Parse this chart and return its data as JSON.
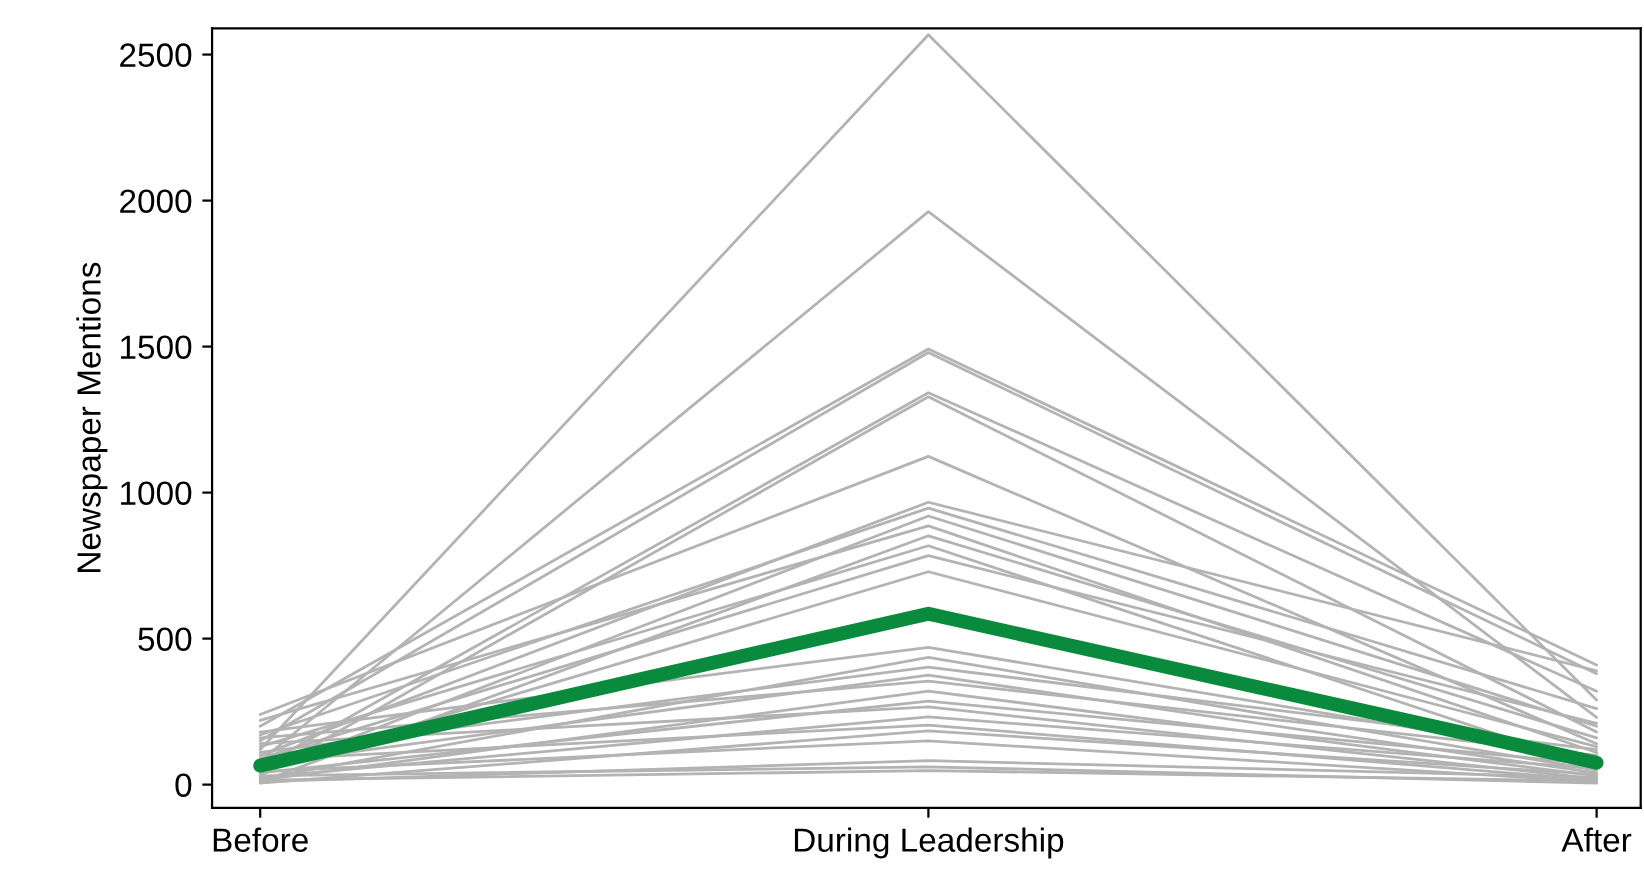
{
  "chart_data": {
    "type": "line",
    "ylabel": "Newspaper Mentions",
    "categories": [
      "Before",
      "During Leadership",
      "After"
    ],
    "ylim": [
      -80,
      2590
    ],
    "yticks": [
      0,
      500,
      1000,
      1500,
      2000,
      2500
    ],
    "grid": false,
    "legend": false,
    "marker": "none",
    "line_style": "solid",
    "series": [
      {
        "color": "#b3b3b3",
        "values": [
          120,
          2568,
          290
        ]
      },
      {
        "color": "#b3b3b3",
        "values": [
          80,
          1962,
          230
        ]
      },
      {
        "color": "#b3b3b3",
        "values": [
          200,
          1492,
          410
        ]
      },
      {
        "color": "#b3b3b3",
        "values": [
          150,
          1480,
          380
        ]
      },
      {
        "color": "#b3b3b3",
        "values": [
          60,
          1342,
          320
        ]
      },
      {
        "color": "#b3b3b3",
        "values": [
          30,
          1328,
          180
        ]
      },
      {
        "color": "#b3b3b3",
        "values": [
          240,
          1124,
          140
        ]
      },
      {
        "color": "#b3b3b3",
        "values": [
          100,
          967,
          390
        ]
      },
      {
        "color": "#b3b3b3",
        "values": [
          170,
          947,
          260
        ]
      },
      {
        "color": "#b3b3b3",
        "values": [
          40,
          920,
          200
        ]
      },
      {
        "color": "#b3b3b3",
        "values": [
          220,
          886,
          110
        ]
      },
      {
        "color": "#b3b3b3",
        "values": [
          10,
          852,
          160
        ]
      },
      {
        "color": "#b3b3b3",
        "values": [
          130,
          818,
          60
        ]
      },
      {
        "color": "#b3b3b3",
        "values": [
          90,
          784,
          210
        ]
      },
      {
        "color": "#b3b3b3",
        "values": [
          50,
          729,
          130
        ]
      },
      {
        "color": "#b3b3b3",
        "values": [
          180,
          470,
          90
        ]
      },
      {
        "color": "#b3b3b3",
        "values": [
          20,
          436,
          50
        ]
      },
      {
        "color": "#b3b3b3",
        "values": [
          110,
          402,
          120
        ]
      },
      {
        "color": "#b3b3b3",
        "values": [
          70,
          375,
          40
        ]
      },
      {
        "color": "#b3b3b3",
        "values": [
          160,
          354,
          100
        ]
      },
      {
        "color": "#b3b3b3",
        "values": [
          15,
          320,
          30
        ]
      },
      {
        "color": "#b3b3b3",
        "values": [
          40,
          286,
          70
        ]
      },
      {
        "color": "#b3b3b3",
        "values": [
          140,
          266,
          20
        ]
      },
      {
        "color": "#b3b3b3",
        "values": [
          25,
          232,
          55
        ]
      },
      {
        "color": "#b3b3b3",
        "values": [
          85,
          204,
          15
        ]
      },
      {
        "color": "#b3b3b3",
        "values": [
          5,
          184,
          35
        ]
      },
      {
        "color": "#b3b3b3",
        "values": [
          45,
          150,
          10
        ]
      },
      {
        "color": "#b3b3b3",
        "values": [
          10,
          82,
          25
        ]
      },
      {
        "color": "#b3b3b3",
        "values": [
          30,
          61,
          5
        ]
      },
      {
        "color": "#b3b3b3",
        "values": [
          15,
          48,
          12
        ]
      },
      {
        "color": "#0a8a3c",
        "values": [
          65,
          585,
          75
        ]
      }
    ]
  }
}
